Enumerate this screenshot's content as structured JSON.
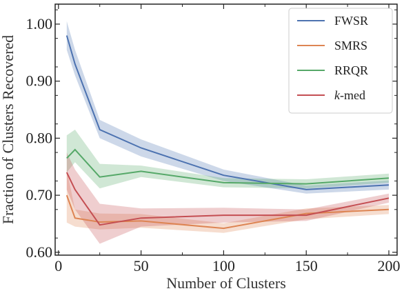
{
  "chart_data": {
    "type": "line",
    "title": "",
    "xlabel": "Number of Clusters",
    "ylabel": "Fraction of Clusters Recovered",
    "xlim": [
      -2,
      205
    ],
    "ylim": [
      0.595,
      1.035
    ],
    "xticks": [
      0,
      50,
      100,
      150,
      200
    ],
    "xtick_labels": [
      "0",
      "50",
      "100",
      "150",
      "200"
    ],
    "yticks": [
      0.6,
      0.7,
      0.8,
      0.9,
      1.0
    ],
    "ytick_labels": [
      "0.60",
      "0.70",
      "0.80",
      "0.90",
      "1.00"
    ],
    "grid": false,
    "legend_position": "top-right",
    "x": [
      5,
      10,
      25,
      50,
      100,
      150,
      200
    ],
    "series": [
      {
        "name": "FWSR",
        "color": "#4c72b0",
        "values": [
          0.98,
          0.93,
          0.815,
          0.783,
          0.735,
          0.71,
          0.718
        ],
        "lower": [
          0.955,
          0.91,
          0.8,
          0.768,
          0.725,
          0.703,
          0.71
        ],
        "upper": [
          1.005,
          0.955,
          0.832,
          0.798,
          0.745,
          0.717,
          0.726
        ]
      },
      {
        "name": "SMRS",
        "color": "#dd8452",
        "values": [
          0.7,
          0.66,
          0.653,
          0.655,
          0.642,
          0.668,
          0.675
        ],
        "lower": [
          0.652,
          0.645,
          0.64,
          0.643,
          0.634,
          0.658,
          0.667
        ],
        "upper": [
          0.745,
          0.675,
          0.668,
          0.667,
          0.651,
          0.677,
          0.683
        ]
      },
      {
        "name": "RRQR",
        "color": "#55a868",
        "values": [
          0.765,
          0.78,
          0.732,
          0.742,
          0.722,
          0.72,
          0.73
        ],
        "lower": [
          0.74,
          0.758,
          0.712,
          0.732,
          0.714,
          0.712,
          0.722
        ],
        "upper": [
          0.805,
          0.815,
          0.755,
          0.752,
          0.73,
          0.728,
          0.738
        ]
      },
      {
        "name": "k-med",
        "name_prefix": "k",
        "name_suffix": "-med",
        "color": "#c44e52",
        "values": [
          0.74,
          0.71,
          0.648,
          0.66,
          0.665,
          0.665,
          0.695
        ],
        "lower": [
          0.71,
          0.675,
          0.615,
          0.645,
          0.652,
          0.655,
          0.687
        ],
        "upper": [
          0.775,
          0.745,
          0.685,
          0.677,
          0.678,
          0.675,
          0.703
        ]
      }
    ]
  }
}
